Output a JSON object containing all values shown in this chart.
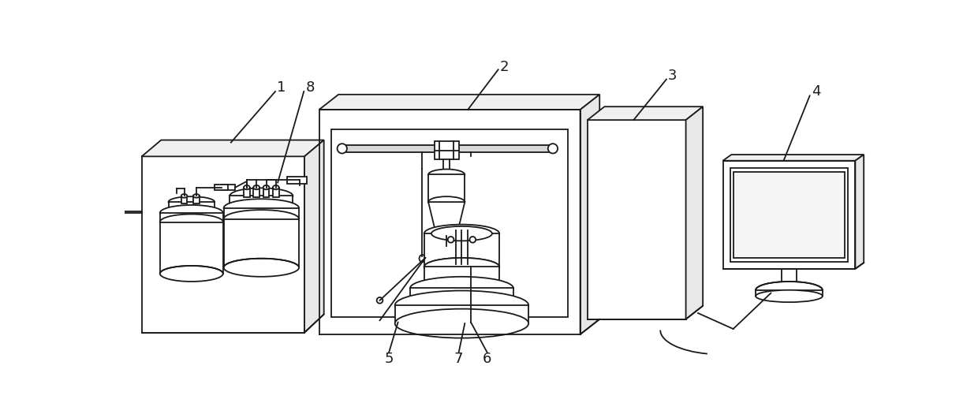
{
  "bg_color": "#ffffff",
  "lc": "#1a1a1a",
  "lw": 1.3,
  "label_fs": 13
}
